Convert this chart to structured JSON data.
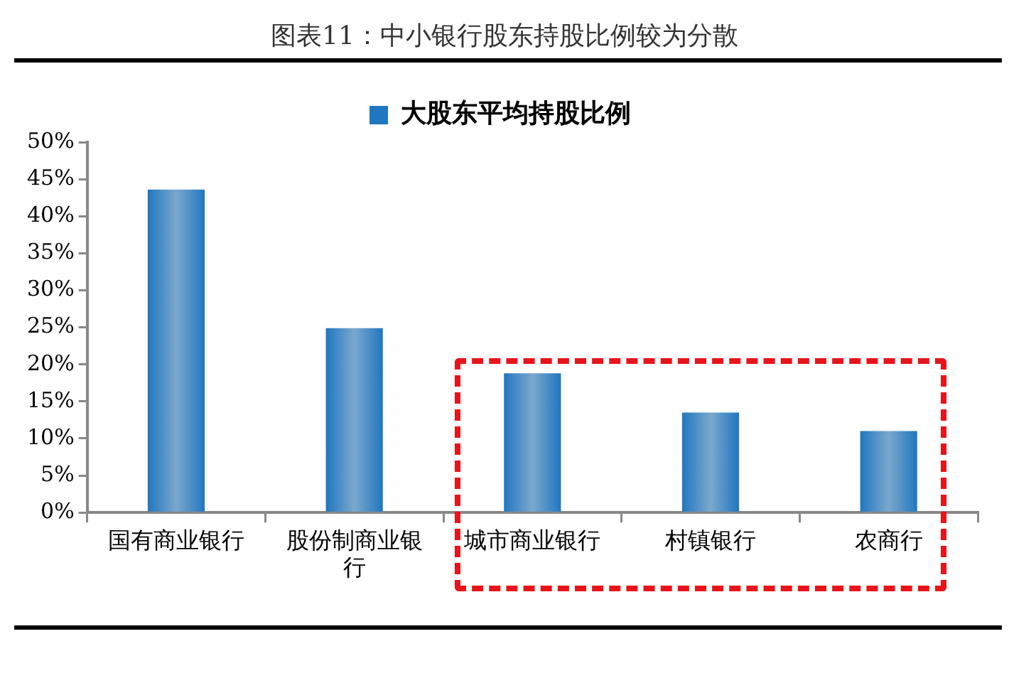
{
  "chart_data": {
    "type": "bar",
    "title": "图表11：中小银行股东持股比例较为分散",
    "categories": [
      "国有商业银行",
      "股份制商业银行",
      "城市商业银行",
      "村镇银行",
      "农商行"
    ],
    "series": [
      {
        "name": "大股东平均持股比例",
        "color": "#1f77c0",
        "values": [
          43.6,
          24.9,
          18.8,
          13.5,
          11.0
        ]
      }
    ],
    "ylim": [
      0,
      50
    ],
    "yticks": [
      {
        "value": 0,
        "label": "0%"
      },
      {
        "value": 5,
        "label": "5%"
      },
      {
        "value": 10,
        "label": "10%"
      },
      {
        "value": 15,
        "label": "15%"
      },
      {
        "value": 20,
        "label": "20%"
      },
      {
        "value": 25,
        "label": "25%"
      },
      {
        "value": 30,
        "label": "30%"
      },
      {
        "value": 35,
        "label": "35%"
      },
      {
        "value": 40,
        "label": "40%"
      },
      {
        "value": 45,
        "label": "45%"
      },
      {
        "value": 50,
        "label": "50%"
      }
    ],
    "legend": "top"
  }
}
